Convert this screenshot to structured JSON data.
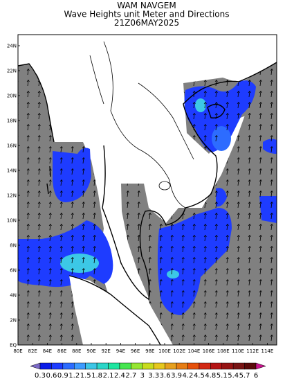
{
  "header": {
    "lines": [
      "WAM NAVGEM",
      "Wave Heights unit Meter and Directions",
      "21Z06MAY2025"
    ]
  },
  "map": {
    "lon_labels": [
      "80E",
      "82E",
      "84E",
      "86E",
      "88E",
      "90E",
      "92E",
      "94E",
      "96E",
      "98E",
      "100E",
      "102E",
      "104E",
      "106E",
      "108E",
      "110E",
      "112E",
      "114E"
    ],
    "lat_labels": [
      "EQ",
      "2N",
      "4N",
      "6N",
      "8N",
      "10N",
      "12N",
      "14N",
      "16N",
      "18N",
      "20N",
      "22N",
      "24N"
    ]
  },
  "colorbar": {
    "labels": [
      "0.3",
      "0.6",
      "0.9",
      "1.2",
      "1.5",
      "1.8",
      "2.1",
      "2.4",
      "2.7",
      "3",
      "3.3",
      "3.6",
      "3.9",
      "4.2",
      "4.5",
      "4.8",
      "5.1",
      "5.4",
      "5.7",
      "6"
    ]
  }
}
